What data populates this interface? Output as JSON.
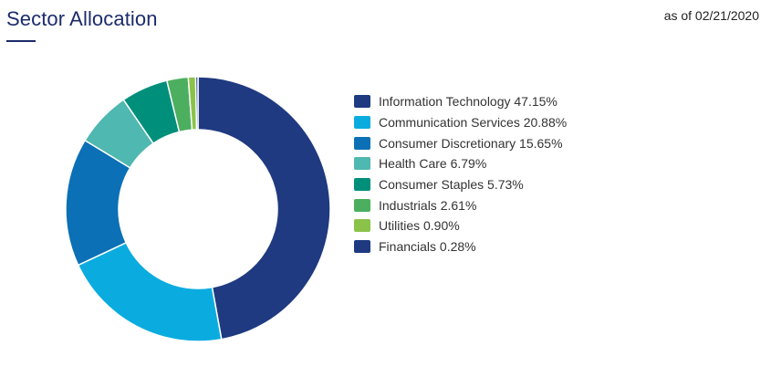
{
  "header": {
    "title": "Sector Allocation",
    "as_of": "as of 02/21/2020"
  },
  "chart_data": {
    "type": "pie",
    "variant": "donut",
    "categories": [
      "Information Technology",
      "Communication Services",
      "Consumer Discretionary",
      "Health Care",
      "Consumer Staples",
      "Industrials",
      "Utilities",
      "Financials"
    ],
    "values": [
      47.15,
      20.88,
      15.65,
      6.79,
      5.73,
      2.61,
      0.9,
      0.28
    ],
    "colors": [
      "#1f3a80",
      "#0aace0",
      "#0b70b5",
      "#4fb8b0",
      "#008f7a",
      "#4caf5f",
      "#8bc34a",
      "#1f3a80"
    ],
    "legend_labels": [
      "Information Technology 47.15%",
      "Communication Services 20.88%",
      "Consumer Discretionary 15.65%",
      "Health Care 6.79%",
      "Consumer Staples 5.73%",
      "Industrials 2.61%",
      "Utilities 0.90%",
      "Financials 0.28%"
    ],
    "legend_position": "right"
  }
}
